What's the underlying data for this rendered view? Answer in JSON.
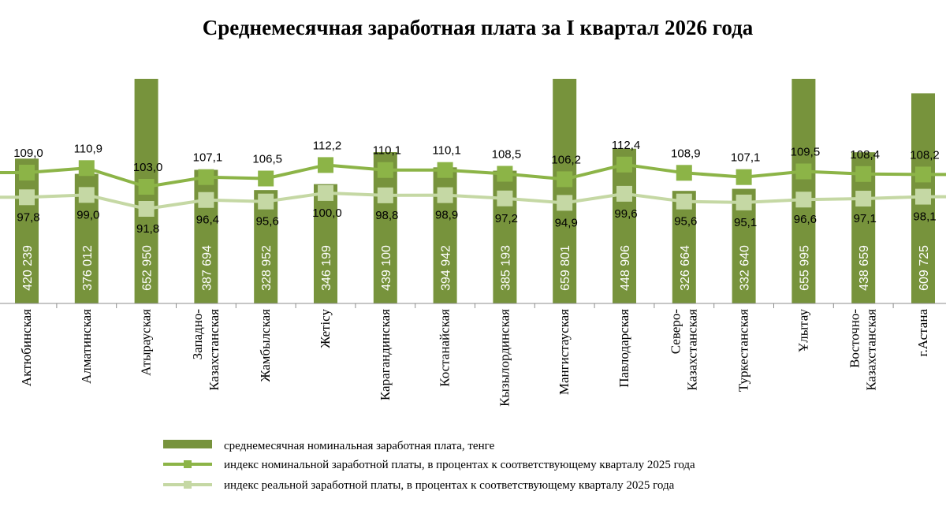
{
  "chart_data": {
    "type": "bar",
    "title": "Среднемесячная заработная плата за I квартал 2026 года",
    "categories": [
      [
        "Актюбинская"
      ],
      [
        "Алматинская"
      ],
      [
        "Атырауская"
      ],
      [
        "Западно-",
        "Казахстанская"
      ],
      [
        "Жамбылская"
      ],
      [
        "Жетісу"
      ],
      [
        "Карагандинская"
      ],
      [
        "Костанайская"
      ],
      [
        "Кызылординская"
      ],
      [
        "Мангистауская"
      ],
      [
        "Павлодарская"
      ],
      [
        "Северо-",
        "Казахстанская"
      ],
      [
        "Туркестанская"
      ],
      [
        "Ұлытау"
      ],
      [
        "Восточно-",
        "Казахстанская"
      ],
      [
        "г.Астана"
      ]
    ],
    "series": [
      {
        "name": "среднемесячная номинальная заработная плата, тенге",
        "type": "bar",
        "color": "#77933c",
        "values": [
          420239,
          376012,
          652950,
          387694,
          328952,
          346199,
          439100,
          394942,
          385193,
          659801,
          448906,
          326664,
          332640,
          655995,
          438659,
          609725
        ],
        "labels": [
          "420 239",
          "376 012",
          "652 950",
          "387 694",
          "328 952",
          "346 199",
          "439 100",
          "394 942",
          "385 193",
          "659 801",
          "448 906",
          "326 664",
          "332 640",
          "655 995",
          "438 659",
          "609 725"
        ]
      },
      {
        "name": "индекс номинальной заработной платы, в процентах к соответствующему кварталу 2025 года",
        "type": "line",
        "color": "#8cb447",
        "values": [
          109.0,
          110.9,
          103.0,
          107.1,
          106.5,
          112.2,
          110.1,
          110.1,
          108.5,
          106.2,
          112.4,
          108.9,
          107.1,
          109.5,
          108.4,
          108.2
        ],
        "labels": [
          "109,0",
          "110,9",
          "103,0",
          "107,1",
          "106,5",
          "112,2",
          "110,1",
          "110,1",
          "108,5",
          "106,2",
          "112,4",
          "108,9",
          "107,1",
          "109,5",
          "108,4",
          "108,2"
        ]
      },
      {
        "name": "индекс реальной заработной платы, в процентах к соответствующему кварталу 2025 года",
        "type": "line",
        "color": "#c5d8a4",
        "values": [
          97.8,
          99.0,
          91.8,
          96.4,
          95.6,
          100.0,
          98.8,
          98.9,
          97.2,
          94.9,
          99.6,
          95.6,
          95.1,
          96.6,
          97.1,
          98.1
        ],
        "labels": [
          "97,8",
          "99,0",
          "91,8",
          "96,4",
          "95,6",
          "100,0",
          "98,8",
          "98,9",
          "97,2",
          "94,9",
          "99,6",
          "95,6",
          "95,1",
          "96,6",
          "97,1",
          "98,1"
        ]
      }
    ],
    "legend_position": "bottom",
    "grid": false
  }
}
